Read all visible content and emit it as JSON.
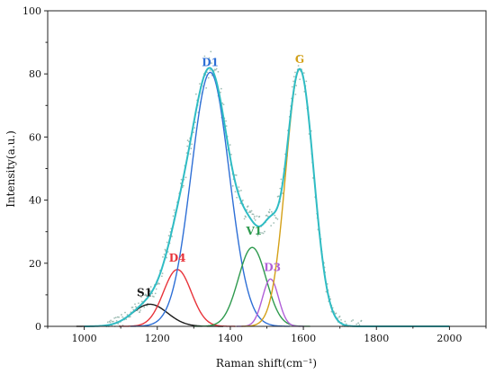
{
  "chart_data": {
    "type": "line",
    "xlabel": "Raman shift(cm⁻¹)",
    "ylabel": "Intensity(a.u.)",
    "xlim": [
      900,
      2100
    ],
    "ylim": [
      0,
      100
    ],
    "xticks": [
      1000,
      1200,
      1400,
      1600,
      1800,
      2000
    ],
    "yticks": [
      0,
      20,
      40,
      60,
      80,
      100
    ],
    "grid": false,
    "series": [
      {
        "name": "S1",
        "color": "#1a1a1a",
        "peak": {
          "center": 1180,
          "height": 7,
          "sigma": 48
        },
        "label_position": {
          "x": 1165,
          "y": 9.5
        }
      },
      {
        "name": "D4",
        "color": "#e8333a",
        "peak": {
          "center": 1255,
          "height": 18,
          "sigma": 38
        },
        "label_position": {
          "x": 1255,
          "y": 20.5
        }
      },
      {
        "name": "D1",
        "color": "#2e6fd6",
        "peak": {
          "center": 1345,
          "height": 80.5,
          "sigma": 52
        },
        "label_position": {
          "x": 1345,
          "y": 82.5
        }
      },
      {
        "name": "V1",
        "color": "#2e9a4e",
        "peak": {
          "center": 1460,
          "height": 25,
          "sigma": 38
        },
        "label_position": {
          "x": 1465,
          "y": 29
        }
      },
      {
        "name": "D3",
        "color": "#b060d8",
        "peak": {
          "center": 1510,
          "height": 15,
          "sigma": 22
        },
        "label_position": {
          "x": 1515,
          "y": 17.5
        }
      },
      {
        "name": "G",
        "color": "#d4a017",
        "peak": {
          "center": 1590,
          "height": 81.5,
          "sigma": 38
        },
        "label_position": {
          "x": 1590,
          "y": 83.5
        }
      }
    ],
    "fit_curve": {
      "color": "#2fbcc4"
    },
    "raw_points": {
      "color": "#8fb3a8",
      "description_range": [
        1060,
        1760
      ]
    }
  }
}
